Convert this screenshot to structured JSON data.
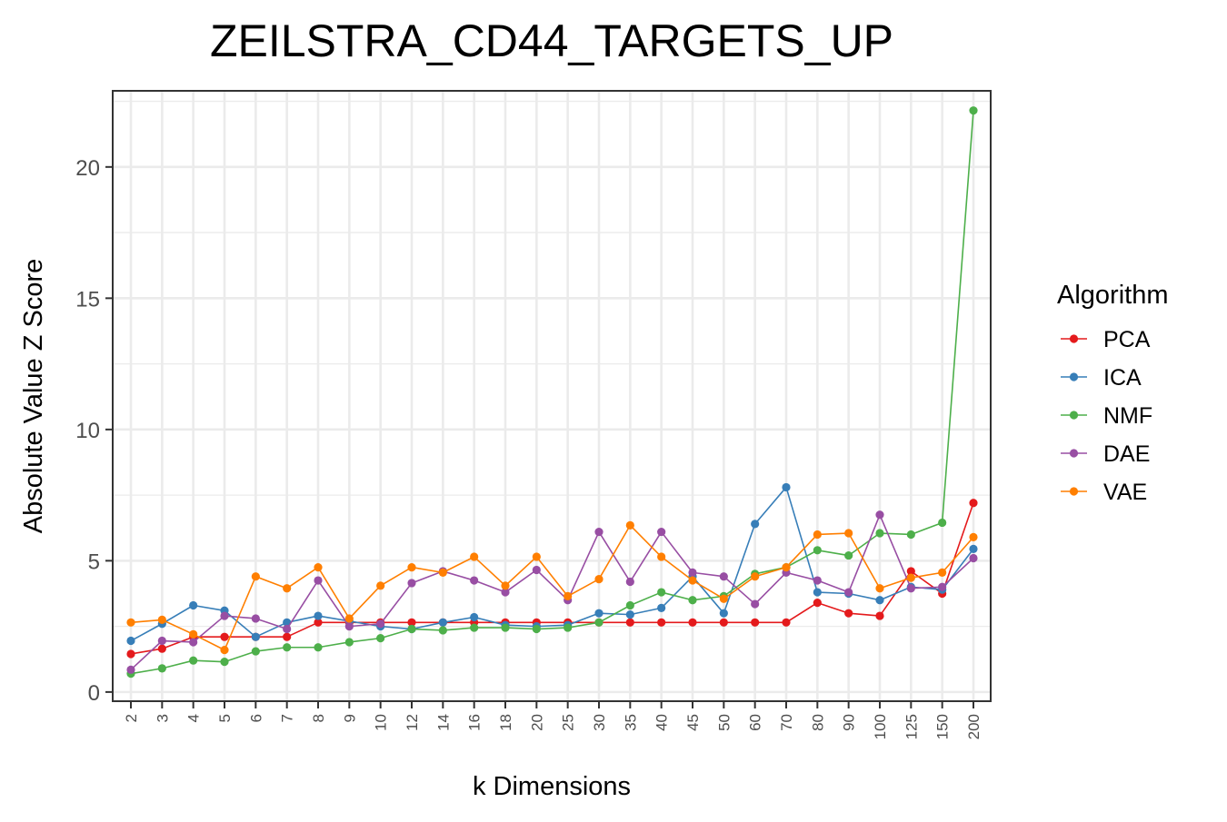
{
  "chart_data": {
    "type": "line",
    "title": "ZEILSTRA_CD44_TARGETS_UP",
    "xlabel": "k Dimensions",
    "ylabel": "Absolute Value Z Score",
    "categories": [
      "2",
      "3",
      "4",
      "5",
      "6",
      "7",
      "8",
      "9",
      "10",
      "12",
      "14",
      "16",
      "18",
      "20",
      "25",
      "30",
      "35",
      "40",
      "45",
      "50",
      "60",
      "70",
      "80",
      "90",
      "100",
      "125",
      "150",
      "200"
    ],
    "ylim": [
      -0.35,
      22.9
    ],
    "yticks": [
      0,
      5,
      10,
      15,
      20
    ],
    "grid": true,
    "legend": {
      "title": "Algorithm",
      "position": "right"
    },
    "series": [
      {
        "name": "PCA",
        "color": "#e41a1c",
        "values": [
          1.45,
          1.65,
          2.1,
          2.1,
          2.1,
          2.1,
          2.65,
          2.65,
          2.65,
          2.65,
          2.65,
          2.65,
          2.65,
          2.65,
          2.65,
          2.65,
          2.65,
          2.65,
          2.65,
          2.65,
          2.65,
          2.65,
          3.4,
          3.0,
          2.9,
          4.6,
          3.75,
          7.2
        ]
      },
      {
        "name": "ICA",
        "color": "#377eb8",
        "values": [
          1.95,
          2.6,
          3.3,
          3.1,
          2.1,
          2.65,
          2.9,
          2.7,
          2.5,
          2.4,
          2.65,
          2.85,
          2.55,
          2.5,
          2.55,
          3.0,
          2.95,
          3.2,
          4.4,
          3.0,
          6.4,
          7.8,
          3.8,
          3.75,
          3.5,
          4.0,
          3.9,
          5.45
        ]
      },
      {
        "name": "NMF",
        "color": "#4daf4a",
        "values": [
          0.7,
          0.9,
          1.2,
          1.15,
          1.55,
          1.7,
          1.7,
          1.9,
          2.05,
          2.4,
          2.35,
          2.45,
          2.45,
          2.4,
          2.45,
          2.65,
          3.3,
          3.8,
          3.5,
          3.65,
          4.5,
          4.75,
          5.4,
          5.2,
          6.05,
          6.0,
          6.45,
          22.15
        ]
      },
      {
        "name": "DAE",
        "color": "#984ea3",
        "values": [
          0.85,
          1.95,
          1.9,
          2.9,
          2.8,
          2.4,
          4.25,
          2.5,
          2.6,
          4.15,
          4.6,
          4.25,
          3.8,
          4.65,
          3.5,
          6.1,
          4.2,
          6.1,
          4.55,
          4.4,
          3.35,
          4.55,
          4.25,
          3.8,
          6.75,
          3.95,
          4.0,
          5.1
        ]
      },
      {
        "name": "VAE",
        "color": "#ff7f00",
        "values": [
          2.65,
          2.75,
          2.2,
          1.6,
          4.4,
          3.95,
          4.75,
          2.8,
          4.05,
          4.75,
          4.55,
          5.15,
          4.05,
          5.15,
          3.65,
          4.3,
          6.35,
          5.15,
          4.25,
          3.55,
          4.4,
          4.75,
          6.0,
          6.05,
          3.95,
          4.35,
          4.55,
          5.9
        ]
      }
    ]
  }
}
